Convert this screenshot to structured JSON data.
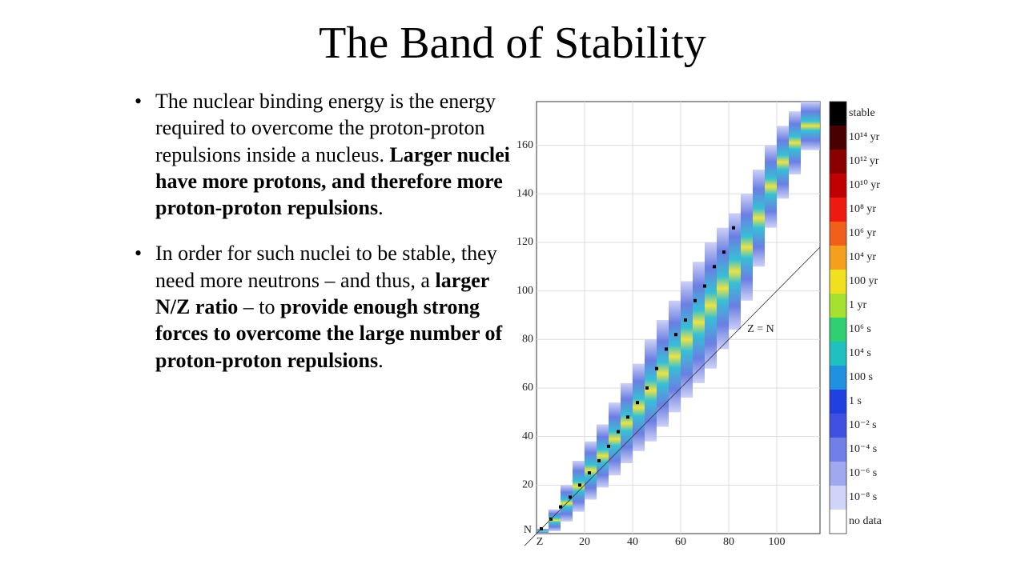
{
  "slide": {
    "title": "The Band of Stability",
    "bullets": [
      [
        {
          "text": "The nuclear binding energy is the energy required to overcome the proton-proton repulsions inside a nucleus. ",
          "bold": false
        },
        {
          "text": "Larger nuclei have more protons, and therefore more proton-proton repulsions",
          "bold": true
        },
        {
          "text": ".",
          "bold": false
        }
      ],
      [
        {
          "text": "In order for such nuclei to be stable, they need more neutrons – and thus, a ",
          "bold": false
        },
        {
          "text": "larger N/Z ratio",
          "bold": true
        },
        {
          "text": " – to ",
          "bold": false
        },
        {
          "text": "provide enough strong forces to overcome the large number of proton-proton repulsions",
          "bold": true
        },
        {
          "text": ".",
          "bold": false
        }
      ]
    ]
  },
  "chart_data": {
    "type": "heatmap",
    "x_label": "Z",
    "y_label": "N",
    "annotation": "Z = N",
    "xlim": [
      0,
      118
    ],
    "ylim": [
      0,
      178
    ],
    "xticks": [
      20,
      40,
      60,
      80,
      100
    ],
    "yticks": [
      20,
      40,
      60,
      80,
      100,
      120,
      140,
      160
    ],
    "grid": true,
    "band": [
      {
        "z": 0,
        "n_min": 0,
        "n_max": 2
      },
      {
        "z": 5,
        "n_min": 1,
        "n_max": 10
      },
      {
        "z": 10,
        "n_min": 5,
        "n_max": 20
      },
      {
        "z": 15,
        "n_min": 9,
        "n_max": 30
      },
      {
        "z": 20,
        "n_min": 14,
        "n_max": 38
      },
      {
        "z": 25,
        "n_min": 19,
        "n_max": 45
      },
      {
        "z": 30,
        "n_min": 24,
        "n_max": 54
      },
      {
        "z": 35,
        "n_min": 29,
        "n_max": 62
      },
      {
        "z": 40,
        "n_min": 34,
        "n_max": 70
      },
      {
        "z": 45,
        "n_min": 38,
        "n_max": 80
      },
      {
        "z": 50,
        "n_min": 44,
        "n_max": 88
      },
      {
        "z": 55,
        "n_min": 50,
        "n_max": 96
      },
      {
        "z": 60,
        "n_min": 56,
        "n_max": 104
      },
      {
        "z": 65,
        "n_min": 62,
        "n_max": 112
      },
      {
        "z": 70,
        "n_min": 68,
        "n_max": 120
      },
      {
        "z": 75,
        "n_min": 76,
        "n_max": 126
      },
      {
        "z": 80,
        "n_min": 84,
        "n_max": 132
      },
      {
        "z": 85,
        "n_min": 96,
        "n_max": 140
      },
      {
        "z": 90,
        "n_min": 110,
        "n_max": 150
      },
      {
        "z": 95,
        "n_min": 126,
        "n_max": 160
      },
      {
        "z": 100,
        "n_min": 138,
        "n_max": 168
      },
      {
        "z": 105,
        "n_min": 148,
        "n_max": 174
      },
      {
        "z": 110,
        "n_min": 158,
        "n_max": 178
      }
    ],
    "stable": [
      {
        "z": 2,
        "n": 2
      },
      {
        "z": 6,
        "n": 6
      },
      {
        "z": 10,
        "n": 11
      },
      {
        "z": 14,
        "n": 15
      },
      {
        "z": 18,
        "n": 20
      },
      {
        "z": 22,
        "n": 25
      },
      {
        "z": 26,
        "n": 30
      },
      {
        "z": 30,
        "n": 36
      },
      {
        "z": 34,
        "n": 42
      },
      {
        "z": 38,
        "n": 48
      },
      {
        "z": 42,
        "n": 54
      },
      {
        "z": 46,
        "n": 60
      },
      {
        "z": 50,
        "n": 68
      },
      {
        "z": 54,
        "n": 76
      },
      {
        "z": 58,
        "n": 82
      },
      {
        "z": 62,
        "n": 88
      },
      {
        "z": 66,
        "n": 96
      },
      {
        "z": 70,
        "n": 102
      },
      {
        "z": 74,
        "n": 110
      },
      {
        "z": 78,
        "n": 116
      },
      {
        "z": 82,
        "n": 126
      }
    ],
    "colorbar": {
      "labels": [
        "stable",
        "10¹⁴ yr",
        "10¹² yr",
        "10¹⁰ yr",
        "10⁸ yr",
        "10⁶ yr",
        "10⁴ yr",
        "100 yr",
        "1 yr",
        "10⁶ s",
        "10⁴ s",
        "100 s",
        "1 s",
        "10⁻² s",
        "10⁻⁴ s",
        "10⁻⁶ s",
        "10⁻⁸ s",
        "no data"
      ],
      "colors": [
        "#000000",
        "#4a0000",
        "#8a0000",
        "#c00000",
        "#ee1a10",
        "#f0601a",
        "#f4a01e",
        "#f0e020",
        "#a6e030",
        "#30d070",
        "#20c0c0",
        "#2090e0",
        "#2040e0",
        "#4050e0",
        "#7080e8",
        "#a0a8f0",
        "#d0d4f8",
        "#ffffff"
      ]
    }
  }
}
